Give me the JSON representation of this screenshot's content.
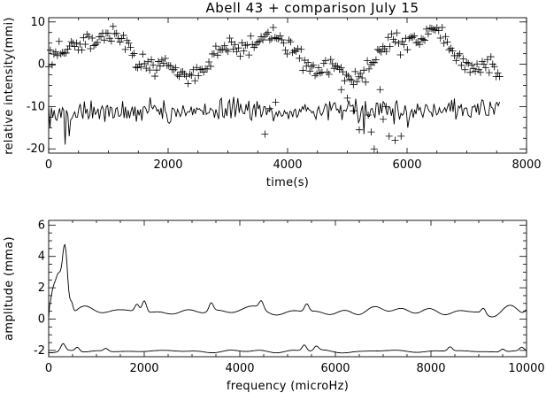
{
  "chart_data": [
    {
      "type": "scatter+line",
      "title": "Abell 43 + comparison July 15",
      "xlabel": "time(s)",
      "ylabel": "relative intensity(mmi)",
      "xlim": [
        0,
        8000
      ],
      "ylim": [
        -21,
        11
      ],
      "xticks": [
        0,
        2000,
        4000,
        6000,
        8000
      ],
      "yticks": [
        -20,
        -10,
        0,
        10
      ],
      "grid": false,
      "series": [
        {
          "style": "plus-markers",
          "sampling": {
            "x_start": 0,
            "x_end": 7550,
            "n": 260
          },
          "model": {
            "offset": 2.0,
            "components": [
              {
                "amplitude": 4.5,
                "period_s": 2700,
                "phase_s": 175
              },
              {
                "amplitude": 1.2,
                "period_s": 900,
                "phase_s": 0
              }
            ],
            "noise_sd": 1.6,
            "outliers": [
              [
                3620,
                -16.5
              ],
              [
                5200,
                -15.5
              ],
              [
                5400,
                -16.0
              ],
              [
                5450,
                -20.0
              ],
              [
                5700,
                -17.0
              ],
              [
                5800,
                -18.0
              ],
              [
                5900,
                -17.0
              ],
              [
                5650,
                -10.0
              ],
              [
                5550,
                -6.0
              ],
              [
                4900,
                -6.0
              ],
              [
                5000,
                -8.0
              ],
              [
                3700,
                -10.5
              ],
              [
                3800,
                -9.0
              ],
              [
                5350,
                -12.0
              ],
              [
                5100,
                -11.0
              ],
              [
                5600,
                -13.0
              ]
            ]
          }
        },
        {
          "style": "line",
          "sampling": {
            "x_start": 0,
            "x_end": 7550,
            "n": 330
          },
          "model": {
            "offset": -11.0,
            "noise_sd": 2.0,
            "spikes": [
              [
                280,
                -19.0
              ],
              [
                350,
                -17.0
              ],
              [
                30,
                -15.0
              ],
              [
                5270,
                -16.5
              ]
            ]
          }
        }
      ]
    },
    {
      "type": "line",
      "title": "",
      "xlabel": "frequency (microHz)",
      "ylabel": "amplitude (mma)",
      "xlim": [
        0,
        10000
      ],
      "ylim": [
        -2.4,
        6.3
      ],
      "xticks": [
        0,
        2000,
        4000,
        6000,
        8000,
        10000
      ],
      "yticks": [
        -2,
        0,
        2,
        4,
        6
      ],
      "grid": false,
      "series": [
        {
          "style": "line",
          "sampling": {
            "x_start": 0,
            "x_end": 10000,
            "n": 500
          },
          "model": {
            "baseline": 0.5,
            "noise_amplitude": 0.33,
            "peaks": [
              {
                "x": 340,
                "height": 4.8,
                "width": 55
              },
              {
                "x": 200,
                "height": 2.7,
                "width": 60
              },
              {
                "x": 90,
                "height": 1.5,
                "width": 45
              },
              {
                "x": 480,
                "height": 1.1,
                "width": 30
              }
            ],
            "features": [
              [
                2000,
                1.35
              ],
              [
                1850,
                1.05
              ],
              [
                3400,
                1.1
              ],
              [
                4450,
                1.05
              ],
              [
                5400,
                1.05
              ],
              [
                9100,
                0.9
              ],
              [
                10000,
                0.8
              ]
            ]
          }
        },
        {
          "style": "line",
          "sampling": {
            "x_start": 0,
            "x_end": 10000,
            "n": 500
          },
          "model": {
            "baseline": -2.05,
            "noise_amplitude": 0.13,
            "features": [
              [
                300,
                -1.55
              ],
              [
                600,
                -1.75
              ],
              [
                1200,
                -1.85
              ],
              [
                5350,
                -1.6
              ],
              [
                5600,
                -1.75
              ],
              [
                8400,
                -1.75
              ],
              [
                9500,
                -1.85
              ],
              [
                9900,
                -1.8
              ]
            ]
          }
        }
      ]
    }
  ]
}
